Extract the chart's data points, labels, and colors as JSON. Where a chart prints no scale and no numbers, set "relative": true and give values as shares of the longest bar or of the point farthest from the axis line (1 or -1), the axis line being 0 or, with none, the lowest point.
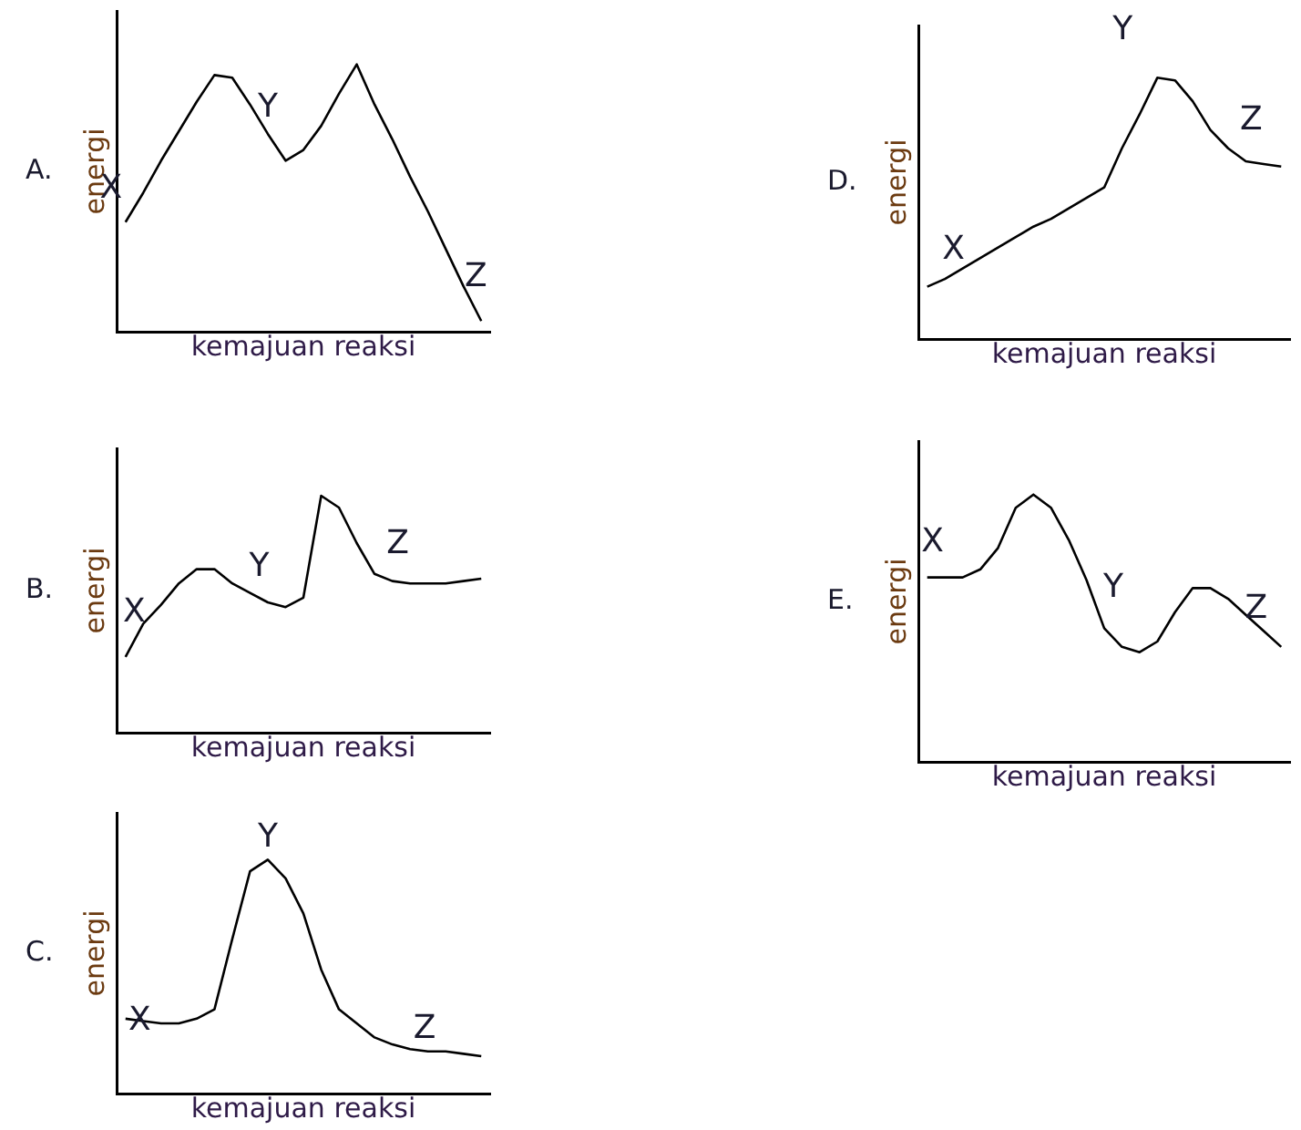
{
  "chart_data": [
    {
      "type": "line",
      "title": "A.",
      "xlabel": "kemajuan reaksi",
      "ylabel": "energi",
      "relative": true,
      "legend": false,
      "categories": [
        null,
        null,
        null,
        null,
        null,
        null,
        null,
        null,
        null,
        null,
        null,
        null,
        null,
        null,
        null,
        null,
        null,
        null,
        null,
        null,
        null
      ],
      "series": [
        {
          "color": "#000000",
          "values": [
            0.41,
            0.52,
            0.64,
            0.75,
            0.86,
            0.96,
            0.95,
            0.85,
            0.74,
            0.64,
            0.68,
            0.77,
            0.89,
            1,
            0.85,
            0.72,
            0.58,
            0.45,
            0.31,
            0.17,
            0.04
          ]
        }
      ],
      "annotations": [
        "X",
        "Y",
        "Z"
      ]
    },
    {
      "type": "line",
      "title": "D.",
      "xlabel": "kemajuan reaksi",
      "ylabel": "energi",
      "relative": true,
      "legend": false,
      "categories": [
        null,
        null,
        null,
        null,
        null,
        null,
        null,
        null,
        null,
        null,
        null,
        null,
        null,
        null,
        null,
        null,
        null,
        null,
        null,
        null,
        null
      ],
      "series": [
        {
          "color": "#000000",
          "values": [
            0.2,
            0.23,
            0.27,
            0.31,
            0.35,
            0.39,
            0.43,
            0.46,
            0.5,
            0.54,
            0.58,
            0.73,
            0.86,
            1,
            0.99,
            0.91,
            0.8,
            0.73,
            0.68,
            0.67,
            0.66
          ]
        }
      ],
      "annotations": [
        "X",
        "Y",
        "Z"
      ]
    },
    {
      "type": "line",
      "title": "B.",
      "xlabel": "kemajuan reaksi",
      "ylabel": "energi",
      "relative": true,
      "legend": false,
      "categories": [
        null,
        null,
        null,
        null,
        null,
        null,
        null,
        null,
        null,
        null,
        null,
        null,
        null,
        null,
        null,
        null,
        null,
        null,
        null,
        null,
        null
      ],
      "series": [
        {
          "color": "#000000",
          "values": [
            0.32,
            0.46,
            0.54,
            0.63,
            0.69,
            0.69,
            0.63,
            0.59,
            0.55,
            0.53,
            0.57,
            1,
            0.95,
            0.8,
            0.67,
            0.64,
            0.63,
            0.63,
            0.63,
            0.64,
            0.65
          ]
        }
      ],
      "annotations": [
        "X",
        "Y",
        "Z"
      ]
    },
    {
      "type": "line",
      "title": "E.",
      "xlabel": "kemajuan reaksi",
      "ylabel": "energi",
      "relative": true,
      "legend": false,
      "categories": [
        null,
        null,
        null,
        null,
        null,
        null,
        null,
        null,
        null,
        null,
        null,
        null,
        null,
        null,
        null,
        null,
        null,
        null,
        null,
        null,
        null
      ],
      "series": [
        {
          "color": "#000000",
          "values": [
            0.69,
            0.69,
            0.69,
            0.72,
            0.8,
            0.95,
            1,
            0.95,
            0.83,
            0.68,
            0.5,
            0.43,
            0.41,
            0.45,
            0.56,
            0.65,
            0.65,
            0.61,
            0.55,
            0.49,
            0.43
          ]
        }
      ],
      "annotations": [
        "X",
        "Y",
        "Z"
      ]
    },
    {
      "type": "line",
      "title": "C.",
      "xlabel": "kemajuan reaksi",
      "ylabel": "energi",
      "relative": true,
      "legend": false,
      "categories": [
        null,
        null,
        null,
        null,
        null,
        null,
        null,
        null,
        null,
        null,
        null,
        null,
        null,
        null,
        null,
        null,
        null,
        null,
        null,
        null,
        null
      ],
      "series": [
        {
          "color": "#000000",
          "values": [
            0.32,
            0.31,
            0.3,
            0.3,
            0.32,
            0.36,
            0.66,
            0.95,
            1,
            0.92,
            0.77,
            0.53,
            0.36,
            0.3,
            0.24,
            0.21,
            0.19,
            0.18,
            0.18,
            0.17,
            0.16
          ]
        }
      ],
      "annotations": [
        "X",
        "Y",
        "Z"
      ]
    }
  ]
}
